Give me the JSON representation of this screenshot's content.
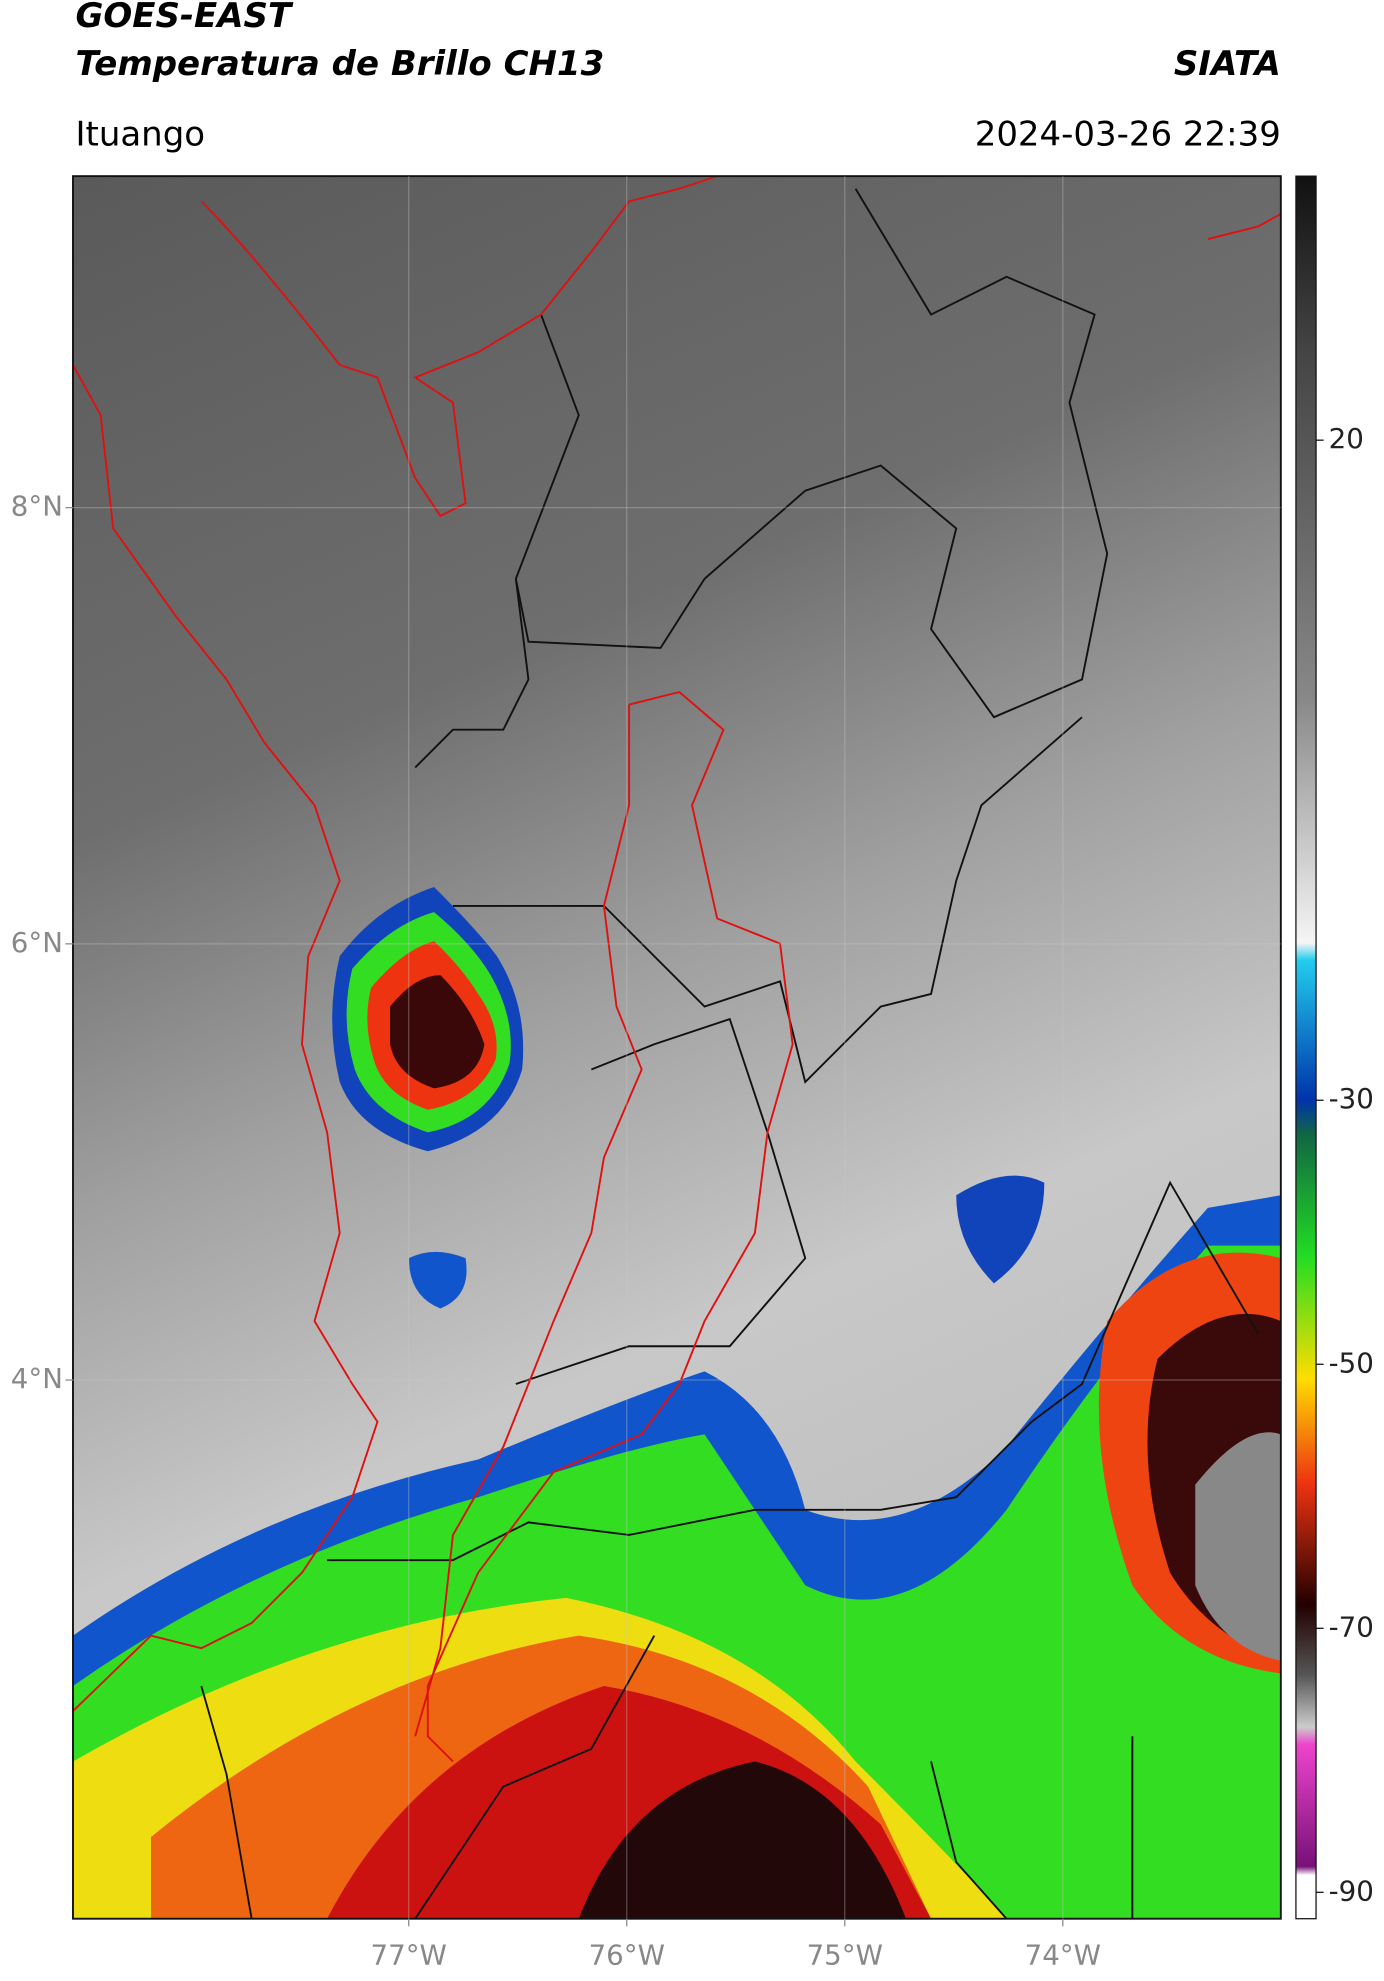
{
  "map": {
    "title": "GOES-EAST",
    "subtitle": "Temperatura de Brillo CH13",
    "source": "SIATA",
    "location": "Ituango",
    "datetime": "2024-03-26 22:39",
    "xlim": [
      -78.54,
      -73.0
    ],
    "ylim": [
      1.53,
      9.52
    ],
    "xticks": [
      {
        "value": -77,
        "label": "77°W"
      },
      {
        "value": -76,
        "label": "76°W"
      },
      {
        "value": -75,
        "label": "75°W"
      },
      {
        "value": -74,
        "label": "74°W"
      }
    ],
    "yticks": [
      {
        "value": 4,
        "label": "4°N"
      },
      {
        "value": 6,
        "label": "6°N"
      },
      {
        "value": 8,
        "label": "8°N"
      }
    ],
    "grid": true,
    "colorbar": {
      "lim": [
        -92,
        40
      ],
      "ticks": [
        20,
        -30,
        -50,
        -70,
        -90
      ]
    }
  }
}
